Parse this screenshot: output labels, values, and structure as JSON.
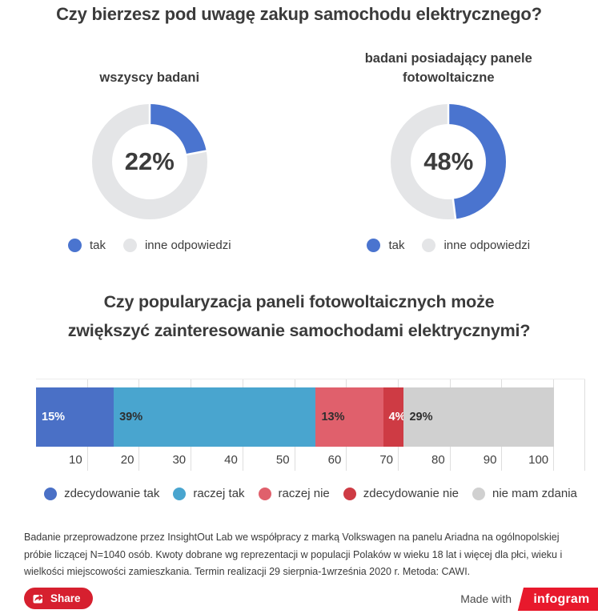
{
  "titles": {
    "q1": "Czy bierzesz pod uwagę zakup samochodu elektrycznego?",
    "q2": "Czy popularyzacja paneli fotowoltaicznych może zwiększyć zainteresowanie samochodami elektrycznymi?"
  },
  "chart_data": [
    {
      "type": "pie",
      "variant": "donut",
      "title": "wszyscy badani",
      "categories": [
        "tak",
        "inne odpowiedzi"
      ],
      "values": [
        22,
        78
      ],
      "colors": [
        "#4a74cf",
        "#e4e5e7"
      ],
      "center_label": "22%",
      "legend_position": "bottom"
    },
    {
      "type": "pie",
      "variant": "donut",
      "title": "badani posiadający panele fotowoltaiczne",
      "categories": [
        "tak",
        "inne odpowiedzi"
      ],
      "values": [
        48,
        52
      ],
      "colors": [
        "#4a74cf",
        "#e4e5e7"
      ],
      "center_label": "48%",
      "legend_position": "bottom"
    },
    {
      "type": "bar",
      "variant": "horizontal-stacked",
      "categories": [
        "zdecydowanie tak",
        "raczej tak",
        "raczej nie",
        "zdecydowanie nie",
        "nie mam zdania"
      ],
      "values": [
        15,
        39,
        13,
        4,
        29
      ],
      "labels": [
        "15%",
        "39%",
        "13%",
        "4%",
        "29%"
      ],
      "colors": [
        "#4a70c6",
        "#49a5cf",
        "#e0606c",
        "#ce3b44",
        "#d0d0d0"
      ],
      "label_colors": [
        "#ffffff",
        "#2e2e2e",
        "#2e2e2e",
        "#ffffff",
        "#2e2e2e"
      ],
      "x_ticks": [
        10,
        20,
        30,
        40,
        50,
        60,
        70,
        80,
        90,
        100
      ],
      "xlim": [
        0,
        106
      ],
      "grid": true,
      "legend_position": "bottom"
    }
  ],
  "footer": {
    "text": "Badanie przeprowadzone przez InsightOut Lab we współpracy z marką Volkswagen na panelu Ariadna na ogólnopolskiej próbie liczącej N=1040 osób. Kwoty dobrane wg reprezentacji w populacji Polaków w wieku 18 lat i więcej dla płci, wieku i wielkości miejscowości zamieszkania. Termin realizacji 29 sierpnia-1września 2020 r. Metoda: CAWI."
  },
  "share": {
    "label": "Share",
    "color": "#d6202f"
  },
  "made_with": {
    "text": "Made with",
    "brand": "infogram",
    "brand_color": "#e8192c"
  }
}
